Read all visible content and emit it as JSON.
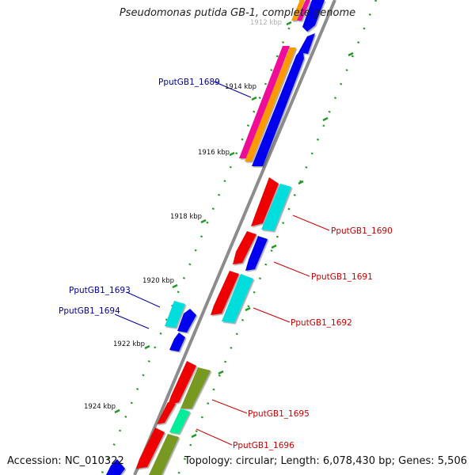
{
  "title": "Pseudomonas putida GB-1, complete genome",
  "accession_text": "Accession: NC_010322",
  "topology_text": "Topology: circular; Length: 6,078,430 bp; Genes: 5,506",
  "ticks": [
    {
      "label": "1912 kbp"
    },
    {
      "label": "1914 kbp"
    },
    {
      "label": "1916 kbp"
    },
    {
      "label": "1918 kbp"
    },
    {
      "label": "1920 kbp"
    },
    {
      "label": "1922 kbp"
    },
    {
      "label": "1924 kbp"
    }
  ],
  "gene_labels": {
    "g1689": "PputGB1_1689",
    "g1690": "PputGB1_1690",
    "g1691": "PputGB1_1691",
    "g1692": "PputGB1_1692",
    "g1693": "PputGB1_1693",
    "g1694": "PputGB1_1694",
    "g1695": "PputGB1_1695",
    "g1696": "PputGB1_1696"
  },
  "colors": {
    "backbone": "#8c8c8c",
    "cds": "#0000ee",
    "rrna_red": "#ee0000",
    "cyan": "#00dddd",
    "magenta": "#ee1199",
    "orange": "#ff9900",
    "olive": "#779922",
    "teal": "#00ee99",
    "dots": "#229922"
  }
}
